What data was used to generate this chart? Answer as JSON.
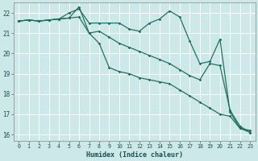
{
  "title": "",
  "xlabel": "Humidex (Indice chaleur)",
  "ylabel": "",
  "bg_color": "#cce8e8",
  "grid_color": "#b8d8d8",
  "line_color": "#1a6b5a",
  "xlim": [
    -0.5,
    23.5
  ],
  "ylim": [
    15.7,
    22.5
  ],
  "yticks": [
    16,
    17,
    18,
    19,
    20,
    21,
    22
  ],
  "xticks": [
    0,
    1,
    2,
    3,
    4,
    5,
    6,
    7,
    8,
    9,
    10,
    11,
    12,
    13,
    14,
    15,
    16,
    17,
    18,
    19,
    20,
    21,
    22,
    23
  ],
  "series": [
    [
      21.6,
      21.65,
      21.6,
      21.65,
      21.7,
      22.0,
      22.2,
      21.5,
      21.5,
      21.5,
      21.5,
      21.2,
      21.1,
      21.5,
      21.7,
      22.1,
      21.8,
      20.6,
      19.5,
      19.6,
      20.7,
      17.1,
      16.3,
      16.2
    ],
    [
      21.6,
      21.65,
      21.6,
      21.65,
      21.7,
      21.75,
      22.3,
      21.0,
      21.1,
      20.8,
      20.5,
      20.3,
      20.1,
      19.9,
      19.7,
      19.5,
      19.2,
      18.9,
      18.7,
      19.5,
      19.4,
      17.2,
      16.4,
      16.1
    ],
    [
      21.6,
      21.65,
      21.6,
      21.65,
      21.7,
      21.75,
      21.8,
      21.0,
      20.5,
      19.3,
      19.1,
      19.0,
      18.8,
      18.7,
      18.6,
      18.5,
      18.2,
      17.9,
      17.6,
      17.3,
      17.0,
      16.9,
      16.3,
      16.1
    ]
  ]
}
